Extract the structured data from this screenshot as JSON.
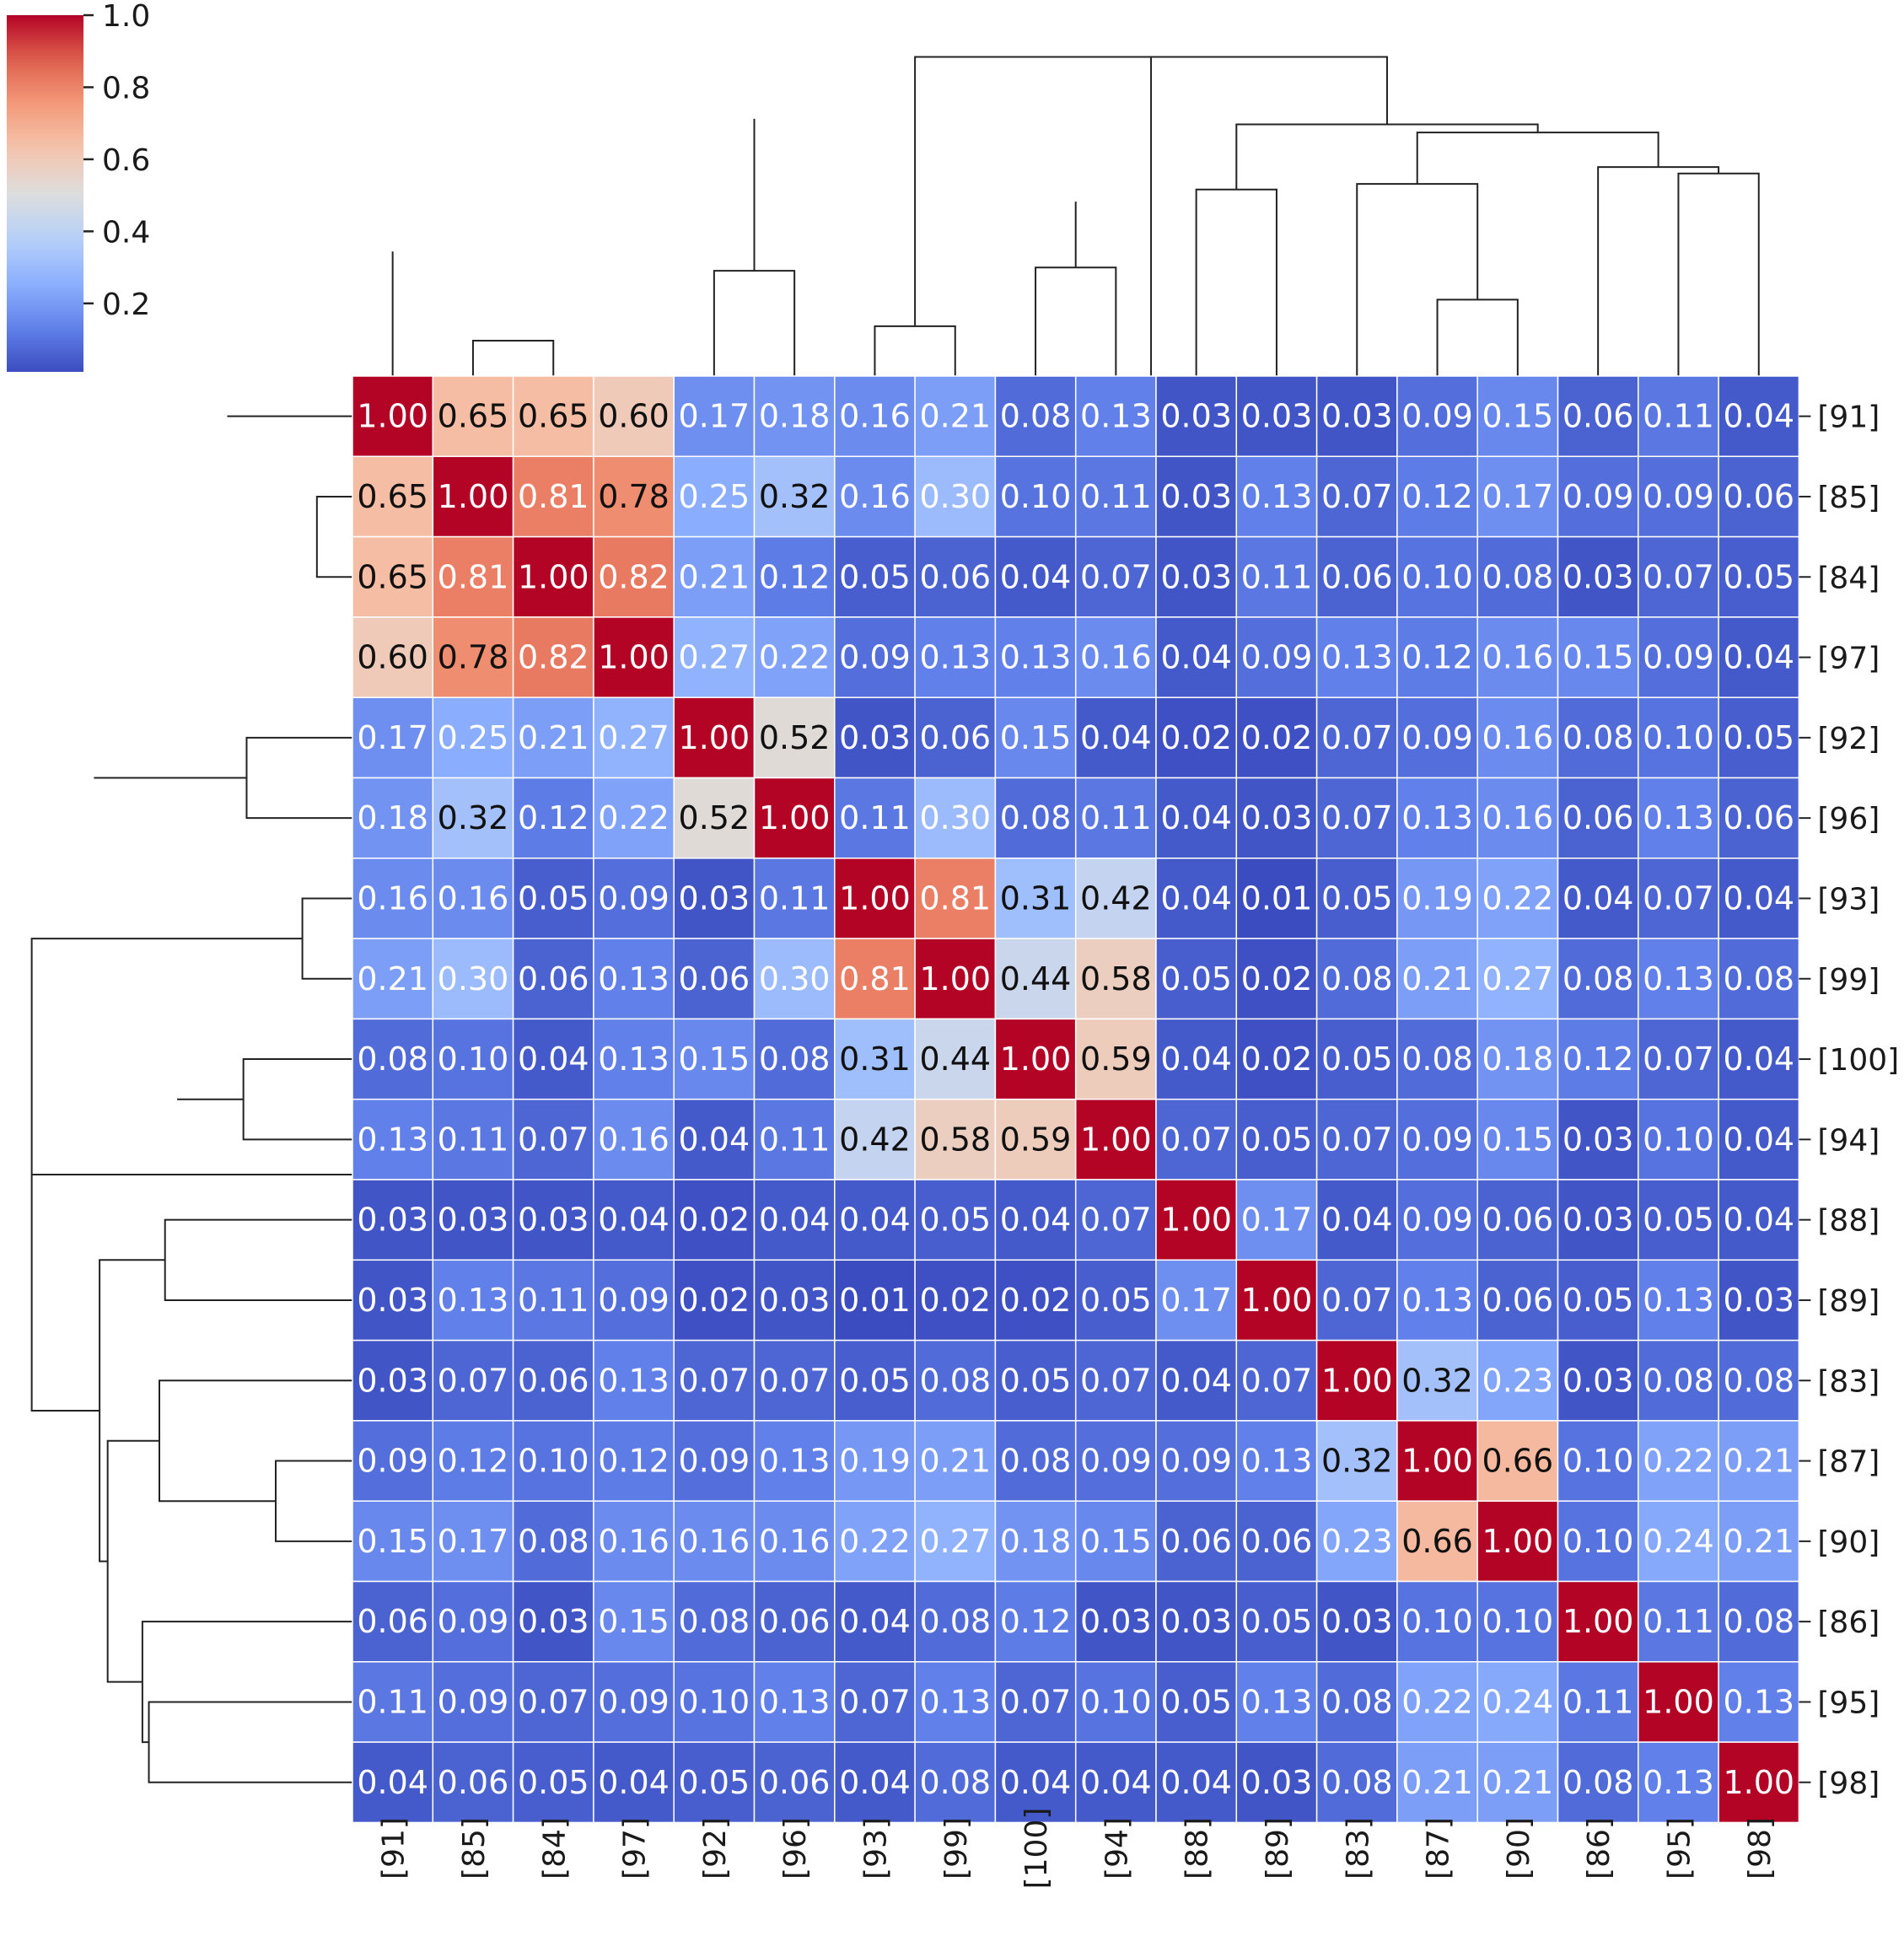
{
  "chart_data": {
    "type": "heatmap",
    "title": "",
    "labels": [
      "[91]",
      "[85]",
      "[84]",
      "[97]",
      "[92]",
      "[96]",
      "[93]",
      "[99]",
      "[100]",
      "[94]",
      "[88]",
      "[89]",
      "[83]",
      "[87]",
      "[90]",
      "[86]",
      "[95]",
      "[98]"
    ],
    "row_labels": [
      "[91]",
      "[85]",
      "[84]",
      "[97]",
      "[92]",
      "[96]",
      "[93]",
      "[99]",
      "[100]",
      "[94]",
      "[88]",
      "[89]",
      "[83]",
      "[87]",
      "[90]",
      "[86]",
      "[95]",
      "[98]"
    ],
    "col_labels": [
      "[91]",
      "[85]",
      "[84]",
      "[97]",
      "[92]",
      "[96]",
      "[93]",
      "[99]",
      "[100]",
      "[94]",
      "[88]",
      "[89]",
      "[83]",
      "[87]",
      "[90]",
      "[86]",
      "[95]",
      "[98]"
    ],
    "values": [
      [
        1.0,
        0.65,
        0.65,
        0.6,
        0.17,
        0.18,
        0.16,
        0.21,
        0.08,
        0.13,
        0.03,
        0.03,
        0.03,
        0.09,
        0.15,
        0.06,
        0.11,
        0.04
      ],
      [
        0.65,
        1.0,
        0.81,
        0.78,
        0.25,
        0.32,
        0.16,
        0.3,
        0.1,
        0.11,
        0.03,
        0.13,
        0.07,
        0.12,
        0.17,
        0.09,
        0.09,
        0.06
      ],
      [
        0.65,
        0.81,
        1.0,
        0.82,
        0.21,
        0.12,
        0.05,
        0.06,
        0.04,
        0.07,
        0.03,
        0.11,
        0.06,
        0.1,
        0.08,
        0.03,
        0.07,
        0.05
      ],
      [
        0.6,
        0.78,
        0.82,
        1.0,
        0.27,
        0.22,
        0.09,
        0.13,
        0.13,
        0.16,
        0.04,
        0.09,
        0.13,
        0.12,
        0.16,
        0.15,
        0.09,
        0.04
      ],
      [
        0.17,
        0.25,
        0.21,
        0.27,
        1.0,
        0.52,
        0.03,
        0.06,
        0.15,
        0.04,
        0.02,
        0.02,
        0.07,
        0.09,
        0.16,
        0.08,
        0.1,
        0.05
      ],
      [
        0.18,
        0.32,
        0.12,
        0.22,
        0.52,
        1.0,
        0.11,
        0.3,
        0.08,
        0.11,
        0.04,
        0.03,
        0.07,
        0.13,
        0.16,
        0.06,
        0.13,
        0.06
      ],
      [
        0.16,
        0.16,
        0.05,
        0.09,
        0.03,
        0.11,
        1.0,
        0.81,
        0.31,
        0.42,
        0.04,
        0.01,
        0.05,
        0.19,
        0.22,
        0.04,
        0.07,
        0.04
      ],
      [
        0.21,
        0.3,
        0.06,
        0.13,
        0.06,
        0.3,
        0.81,
        1.0,
        0.44,
        0.58,
        0.05,
        0.02,
        0.08,
        0.21,
        0.27,
        0.08,
        0.13,
        0.08
      ],
      [
        0.08,
        0.1,
        0.04,
        0.13,
        0.15,
        0.08,
        0.31,
        0.44,
        1.0,
        0.59,
        0.04,
        0.02,
        0.05,
        0.08,
        0.18,
        0.12,
        0.07,
        0.04
      ],
      [
        0.13,
        0.11,
        0.07,
        0.16,
        0.04,
        0.11,
        0.42,
        0.58,
        0.59,
        1.0,
        0.07,
        0.05,
        0.07,
        0.09,
        0.15,
        0.03,
        0.1,
        0.04
      ],
      [
        0.03,
        0.03,
        0.03,
        0.04,
        0.02,
        0.04,
        0.04,
        0.05,
        0.04,
        0.07,
        1.0,
        0.17,
        0.04,
        0.09,
        0.06,
        0.03,
        0.05,
        0.04
      ],
      [
        0.03,
        0.13,
        0.11,
        0.09,
        0.02,
        0.03,
        0.01,
        0.02,
        0.02,
        0.05,
        0.17,
        1.0,
        0.07,
        0.13,
        0.06,
        0.05,
        0.13,
        0.03
      ],
      [
        0.03,
        0.07,
        0.06,
        0.13,
        0.07,
        0.07,
        0.05,
        0.08,
        0.05,
        0.07,
        0.04,
        0.07,
        1.0,
        0.32,
        0.23,
        0.03,
        0.08,
        0.08
      ],
      [
        0.09,
        0.12,
        0.1,
        0.12,
        0.09,
        0.13,
        0.19,
        0.21,
        0.08,
        0.09,
        0.09,
        0.13,
        0.32,
        1.0,
        0.66,
        0.1,
        0.22,
        0.21
      ],
      [
        0.15,
        0.17,
        0.08,
        0.16,
        0.16,
        0.16,
        0.22,
        0.27,
        0.18,
        0.15,
        0.06,
        0.06,
        0.23,
        0.66,
        1.0,
        0.1,
        0.24,
        0.21
      ],
      [
        0.06,
        0.09,
        0.03,
        0.15,
        0.08,
        0.06,
        0.04,
        0.08,
        0.12,
        0.03,
        0.03,
        0.05,
        0.03,
        0.1,
        0.1,
        1.0,
        0.11,
        0.08
      ],
      [
        0.11,
        0.09,
        0.07,
        0.09,
        0.1,
        0.13,
        0.07,
        0.13,
        0.07,
        0.1,
        0.05,
        0.13,
        0.08,
        0.22,
        0.24,
        0.11,
        1.0,
        0.13
      ],
      [
        0.04,
        0.06,
        0.05,
        0.04,
        0.05,
        0.06,
        0.04,
        0.08,
        0.04,
        0.04,
        0.04,
        0.03,
        0.08,
        0.21,
        0.21,
        0.08,
        0.13,
        1.0
      ]
    ],
    "colormap": "coolwarm",
    "vmin": 0.01,
    "vmax": 1.0,
    "colorbar_ticks": [
      "1.0",
      "0.8",
      "0.6",
      "0.4",
      "0.2"
    ],
    "colorbar_tick_values": [
      1.0,
      0.8,
      0.6,
      0.4,
      0.2
    ],
    "colors": {
      "low": "#3b4cc0",
      "mid": "#dddddd",
      "high": "#b40426"
    },
    "dendrogram": {
      "linkage": [
        [
          1,
          2,
          0.44
        ],
        [
          19,
          3,
          0.56
        ],
        [
          0,
          20,
          1.55
        ],
        [
          4,
          5,
          1.31
        ],
        [
          21,
          22,
          3.2
        ],
        [
          6,
          7,
          0.62
        ],
        [
          8,
          9,
          1.35
        ],
        [
          24,
          25,
          2.17
        ],
        [
          10,
          11,
          2.32
        ],
        [
          13,
          14,
          0.95
        ],
        [
          12,
          27,
          2.39
        ],
        [
          17,
          16,
          2.52
        ],
        [
          15,
          29,
          2.6
        ],
        [
          28,
          30,
          3.03
        ],
        [
          26,
          31,
          3.13
        ],
        [
          23,
          32,
          3.97
        ],
        [
          33,
          4.3,
          0
        ]
      ]
    }
  }
}
